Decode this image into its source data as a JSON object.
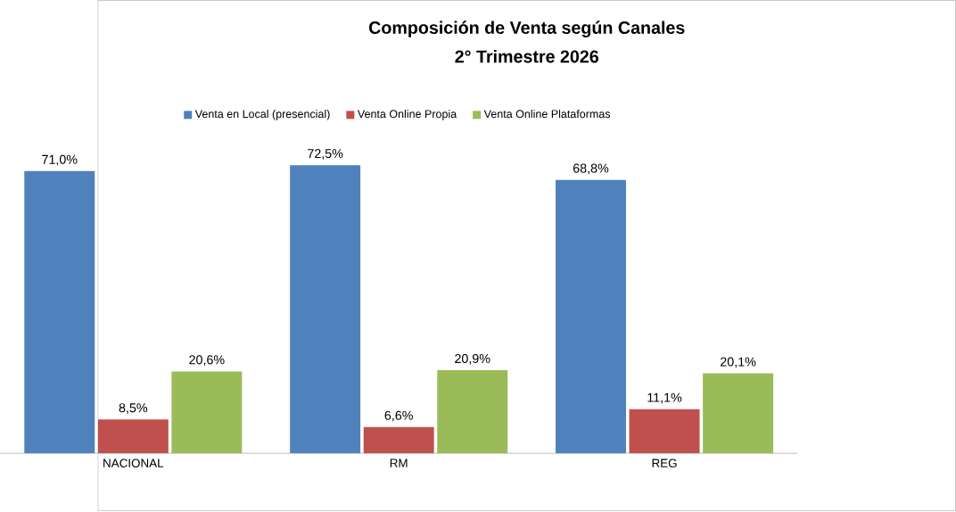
{
  "chart_data": {
    "type": "bar",
    "title": "Composición de Venta según Canales",
    "subtitle": "2° Trimestre 2026",
    "categories": [
      "NACIONAL",
      "RM",
      "REG"
    ],
    "series": [
      {
        "name": "Venta en Local (presencial)",
        "color": "#4f81bd",
        "values": [
          71.0,
          72.5,
          68.8
        ],
        "value_labels": [
          "71,0%",
          "72,5%",
          "68,8%"
        ]
      },
      {
        "name": "Venta  Online Propia",
        "color": "#c0504d",
        "values": [
          8.5,
          6.6,
          11.1
        ],
        "value_labels": [
          "8,5%",
          "6,6%",
          "11,1%"
        ]
      },
      {
        "name": "Venta  Online Plataformas",
        "color": "#9bbb59",
        "values": [
          20.6,
          20.9,
          20.1
        ],
        "value_labels": [
          "20,6%",
          "20,9%",
          "20,1%"
        ]
      }
    ],
    "legend": "top"
  }
}
